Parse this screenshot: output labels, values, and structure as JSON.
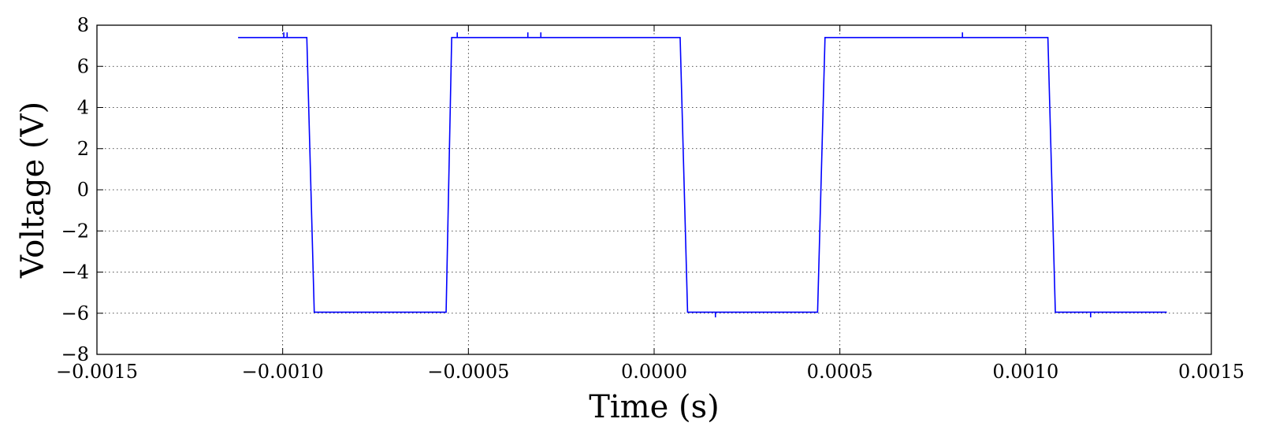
{
  "chart_data": {
    "type": "line",
    "title": "",
    "xlabel": "Time (s)",
    "ylabel": "Voltage (V)",
    "xlim": [
      -0.0015,
      0.0015
    ],
    "ylim": [
      -8,
      8
    ],
    "grid": true,
    "x_ticks": [
      -0.0015,
      -0.001,
      -0.0005,
      0.0,
      0.0005,
      0.001,
      0.0015
    ],
    "x_tick_labels": [
      "−0.0015",
      "−0.0010",
      "−0.0005",
      "0.0000",
      "0.0005",
      "0.0010",
      "0.0015"
    ],
    "y_ticks": [
      -8,
      -6,
      -4,
      -2,
      0,
      2,
      4,
      6,
      8
    ],
    "y_tick_labels": [
      "−8",
      "−6",
      "−4",
      "−2",
      "0",
      "2",
      "4",
      "6",
      "8"
    ],
    "line_color": "#0000ff",
    "series": [
      {
        "x": [
          -0.00112,
          -0.000997,
          -0.000997,
          -0.000997,
          -0.000988,
          -0.000988,
          -0.000988,
          -0.000935,
          -0.000915,
          -0.00056,
          -0.000545,
          -0.00053,
          -0.00053,
          -0.00053,
          -0.00034,
          -0.00034,
          -0.00034,
          -0.000305,
          -0.000305,
          -0.000305,
          7e-05,
          9e-05,
          0.000165,
          0.000165,
          0.000165,
          0.00044,
          0.00046,
          0.00083,
          0.00083,
          0.00083,
          0.00106,
          0.00108,
          0.001175,
          0.001175,
          0.001175,
          0.00138
        ],
        "y": [
          7.4,
          7.4,
          7.65,
          7.4,
          7.4,
          7.65,
          7.4,
          7.4,
          -5.95,
          -5.95,
          7.4,
          7.4,
          7.65,
          7.4,
          7.4,
          7.65,
          7.4,
          7.4,
          7.65,
          7.4,
          7.4,
          -5.95,
          -5.95,
          -6.2,
          -5.95,
          -5.95,
          7.4,
          7.4,
          7.65,
          7.4,
          7.4,
          -5.95,
          -5.95,
          -6.2,
          -5.95,
          -5.95
        ]
      }
    ]
  }
}
